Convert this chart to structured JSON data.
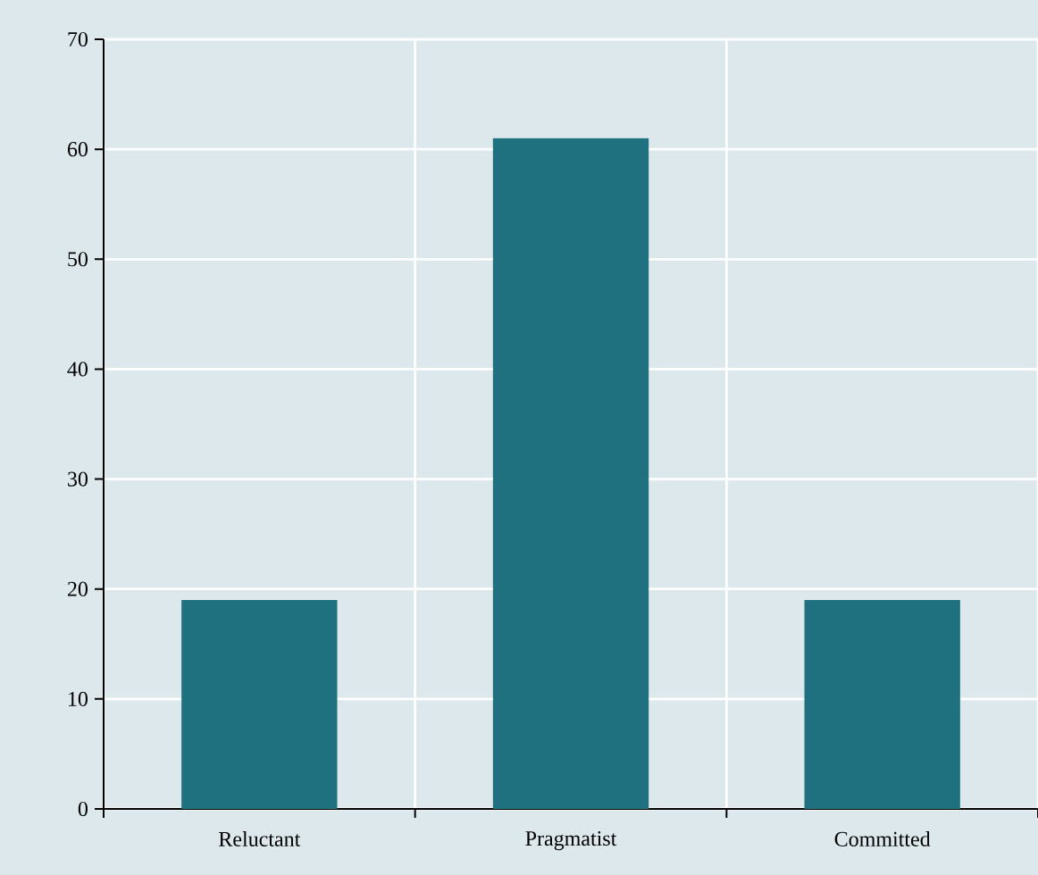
{
  "chart_data": {
    "type": "bar",
    "categories": [
      "Reluctant",
      "Pragmatist",
      "Committed"
    ],
    "values": [
      19,
      61,
      19
    ],
    "color": "#20717f",
    "ylim": [
      0,
      70
    ],
    "yticks": [
      0,
      10,
      20,
      30,
      40,
      50,
      60,
      70
    ],
    "grid": true
  }
}
